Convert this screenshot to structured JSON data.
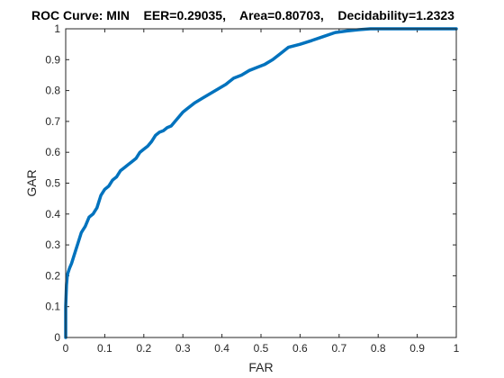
{
  "chart_data": {
    "type": "line",
    "title": "ROC Curve: MIN    EER=0.29035,    Area=0.80703,    Decidability=1.2323",
    "xlabel": "FAR",
    "ylabel": "GAR",
    "xlim": [
      0,
      1
    ],
    "ylim": [
      0,
      1
    ],
    "xticks": [
      "0",
      "0.1",
      "0.2",
      "0.3",
      "0.4",
      "0.5",
      "0.6",
      "0.7",
      "0.8",
      "0.9",
      "1"
    ],
    "yticks": [
      "0",
      "0.1",
      "0.2",
      "0.3",
      "0.4",
      "0.5",
      "0.6",
      "0.7",
      "0.8",
      "0.9",
      "1"
    ],
    "grid": false,
    "line_color": "#0072BD",
    "series": [
      {
        "x": [
          0,
          0,
          0.002,
          0.004,
          0.006,
          0.01,
          0.015,
          0.02,
          0.025,
          0.03,
          0.035,
          0.04,
          0.045,
          0.05,
          0.06,
          0.07,
          0.075,
          0.08,
          0.085,
          0.09,
          0.1,
          0.11,
          0.12,
          0.13,
          0.14,
          0.15,
          0.16,
          0.17,
          0.18,
          0.19,
          0.2,
          0.21,
          0.22,
          0.23,
          0.24,
          0.25,
          0.26,
          0.27,
          0.28,
          0.29,
          0.3,
          0.31,
          0.32,
          0.33,
          0.35,
          0.37,
          0.39,
          0.41,
          0.43,
          0.45,
          0.47,
          0.49,
          0.51,
          0.53,
          0.55,
          0.57,
          0.6,
          0.63,
          0.66,
          0.69,
          0.72,
          0.75,
          0.78,
          0.8,
          0.85,
          0.9,
          0.95,
          1
        ],
        "y": [
          0,
          0.1,
          0.17,
          0.2,
          0.21,
          0.225,
          0.24,
          0.26,
          0.28,
          0.3,
          0.32,
          0.34,
          0.35,
          0.36,
          0.39,
          0.4,
          0.41,
          0.42,
          0.44,
          0.46,
          0.48,
          0.49,
          0.51,
          0.52,
          0.54,
          0.55,
          0.56,
          0.57,
          0.58,
          0.6,
          0.61,
          0.62,
          0.635,
          0.655,
          0.665,
          0.67,
          0.68,
          0.685,
          0.7,
          0.715,
          0.73,
          0.74,
          0.75,
          0.76,
          0.775,
          0.79,
          0.805,
          0.82,
          0.84,
          0.85,
          0.865,
          0.875,
          0.885,
          0.9,
          0.92,
          0.94,
          0.95,
          0.962,
          0.975,
          0.988,
          0.993,
          0.997,
          1,
          1,
          1,
          1,
          1,
          1
        ]
      }
    ]
  }
}
